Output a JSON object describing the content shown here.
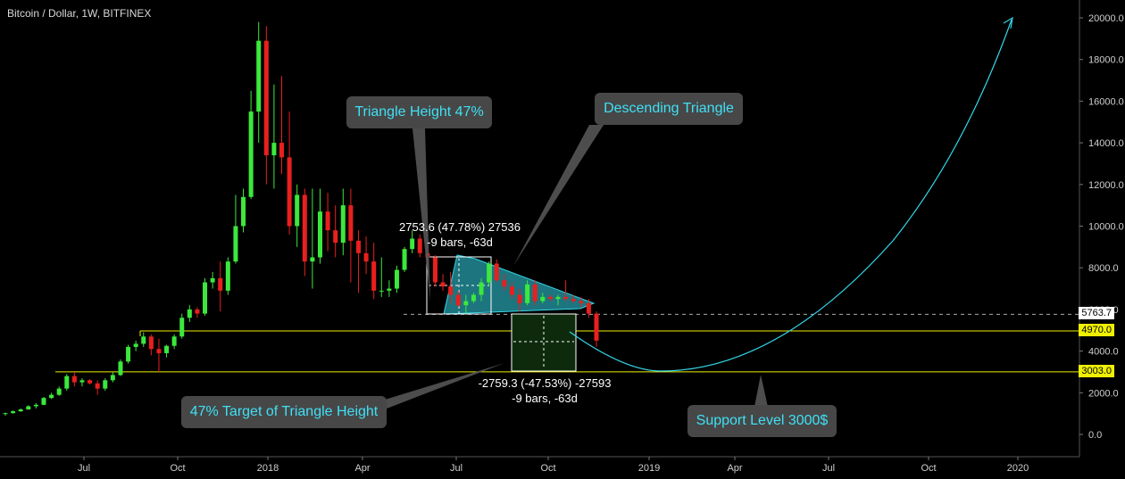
{
  "window": {
    "title": "Bitcoin / Dollar, 1W, BITFINEX"
  },
  "colors": {
    "bull": "#3ce83c",
    "bear": "#e8201e",
    "accent": "#33d6e8",
    "support": "#f0f000",
    "panel": "#474747",
    "target_fill": "#0d2a0d"
  },
  "chart_data": {
    "type": "candlestick",
    "title": "Bitcoin / Dollar, 1W, BITFINEX",
    "x_ticks": [
      "Jul",
      "Oct",
      "2018",
      "Apr",
      "Jul",
      "Oct",
      "2019",
      "Apr",
      "Jul",
      "Oct",
      "2020"
    ],
    "y_ticks": [
      "0.0",
      "2000.0",
      "4000.0",
      "6000.0",
      "8000.0",
      "10000.0",
      "12000.0",
      "14000.0",
      "16000.0",
      "18000.0",
      "20000.0"
    ],
    "ylim": [
      -500,
      20800
    ],
    "price_labels": [
      {
        "value": 5763.7,
        "label": "5763.7",
        "style": "white"
      },
      {
        "value": 4970.0,
        "label": "4970.0",
        "style": "yellow"
      },
      {
        "value": 3003.0,
        "label": "3003.0",
        "style": "yellow"
      }
    ],
    "candles_approx": [
      [
        1000,
        1050,
        900,
        1020
      ],
      [
        1020,
        1150,
        1000,
        1110
      ],
      [
        1110,
        1250,
        1080,
        1200
      ],
      [
        1200,
        1400,
        1180,
        1350
      ],
      [
        1350,
        1500,
        1250,
        1420
      ],
      [
        1420,
        1800,
        1400,
        1750
      ],
      [
        1750,
        2000,
        1700,
        1900
      ],
      [
        1900,
        2300,
        1850,
        2200
      ],
      [
        2200,
        2900,
        2100,
        2800
      ],
      [
        2800,
        3000,
        2300,
        2500
      ],
      [
        2500,
        2700,
        2300,
        2600
      ],
      [
        2600,
        2650,
        2400,
        2450
      ],
      [
        2450,
        2600,
        1900,
        2200
      ],
      [
        2200,
        2700,
        2100,
        2600
      ],
      [
        2600,
        3000,
        2500,
        2850
      ],
      [
        2850,
        3600,
        2800,
        3500
      ],
      [
        3500,
        4300,
        3400,
        4200
      ],
      [
        4200,
        4500,
        4000,
        4350
      ],
      [
        4350,
        4900,
        4200,
        4700
      ],
      [
        4700,
        4800,
        3800,
        4100
      ],
      [
        4100,
        4600,
        3000,
        3900
      ],
      [
        3900,
        4300,
        3700,
        4250
      ],
      [
        4250,
        4800,
        4100,
        4700
      ],
      [
        4700,
        5800,
        4600,
        5600
      ],
      [
        5600,
        6200,
        5400,
        6000
      ],
      [
        6000,
        6100,
        5600,
        5800
      ],
      [
        5800,
        7500,
        5700,
        7300
      ],
      [
        7300,
        7800,
        7000,
        7500
      ],
      [
        7500,
        8300,
        5900,
        6900
      ],
      [
        6900,
        8500,
        6700,
        8300
      ],
      [
        8300,
        11500,
        8200,
        10000
      ],
      [
        10000,
        11800,
        9700,
        11400
      ],
      [
        11400,
        16500,
        11300,
        15500
      ],
      [
        15500,
        19800,
        14000,
        18900
      ],
      [
        18900,
        19600,
        12000,
        13400
      ],
      [
        13400,
        16800,
        11800,
        14000
      ],
      [
        14000,
        17200,
        12500,
        13300
      ],
      [
        13300,
        15500,
        9600,
        10000
      ],
      [
        10000,
        12000,
        9000,
        11500
      ],
      [
        11500,
        11800,
        7600,
        8300
      ],
      [
        8300,
        11800,
        7000,
        8500
      ],
      [
        8500,
        11800,
        8200,
        10700
      ],
      [
        10700,
        11600,
        8800,
        9800
      ],
      [
        9800,
        11000,
        8500,
        9200
      ],
      [
        9200,
        11800,
        8600,
        11000
      ],
      [
        11000,
        11800,
        7300,
        9300
      ],
      [
        9300,
        9800,
        6800,
        8700
      ],
      [
        8700,
        9500,
        7700,
        8300
      ],
      [
        8300,
        9200,
        6500,
        6900
      ],
      [
        6900,
        8500,
        6600,
        6900
      ],
      [
        6900,
        7400,
        6600,
        7000
      ],
      [
        7000,
        8100,
        6800,
        7900
      ],
      [
        7900,
        9000,
        7800,
        8900
      ],
      [
        8900,
        9800,
        8700,
        9400
      ],
      [
        9400,
        9600,
        8500,
        8700
      ],
      [
        8700,
        9100,
        8100,
        8500
      ],
      [
        8500,
        8600,
        7100,
        7300
      ],
      [
        7300,
        7700,
        6900,
        7100
      ],
      [
        7100,
        7800,
        6300,
        6700
      ],
      [
        6700,
        6900,
        6100,
        6200
      ],
      [
        6200,
        6700,
        5800,
        6400
      ],
      [
        6400,
        6800,
        6300,
        6700
      ],
      [
        6700,
        7500,
        6400,
        7300
      ],
      [
        7300,
        8300,
        7100,
        8200
      ],
      [
        8200,
        8400,
        7300,
        7400
      ],
      [
        7400,
        7700,
        6900,
        7100
      ],
      [
        7100,
        7300,
        6500,
        6700
      ],
      [
        6700,
        7000,
        5900,
        6300
      ],
      [
        6300,
        7400,
        6200,
        7200
      ],
      [
        7200,
        7400,
        6200,
        6400
      ],
      [
        6400,
        6800,
        6300,
        6600
      ],
      [
        6600,
        6700,
        6400,
        6500
      ],
      [
        6500,
        6700,
        6200,
        6600
      ],
      [
        6600,
        7400,
        6400,
        6500
      ],
      [
        6500,
        6700,
        6300,
        6400
      ],
      [
        6400,
        6600,
        6100,
        6300
      ],
      [
        6300,
        6500,
        5600,
        5800
      ],
      [
        5800,
        5900,
        4200,
        4500
      ]
    ],
    "measurements": [
      {
        "line1": "2753.6 (47.78%) 27536",
        "line2": "-9 bars, -63d"
      },
      {
        "line1": "-2759.3 (-47.53%) -27593",
        "line2": "-9 bars, -63d"
      }
    ],
    "annotations": [
      {
        "id": "tri-height",
        "text": "Triangle Height 47%"
      },
      {
        "id": "desc-tri",
        "text": "Descending Triangle"
      },
      {
        "id": "target",
        "text": "47% Target of Triangle Height"
      },
      {
        "id": "support",
        "text": "Support Level 3000$"
      }
    ]
  }
}
